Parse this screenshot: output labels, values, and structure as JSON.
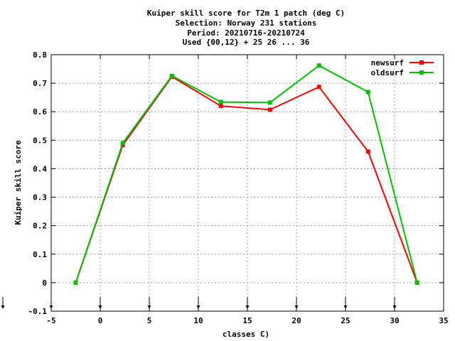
{
  "chart_data": {
    "type": "line",
    "title_lines": [
      "Kuiper skill score  for T2m 1 patch (deg C)",
      "Selection: Norway    231 stations",
      "Period: 20210716-20210724",
      "Used {00,12} + 25 26 ... 36"
    ],
    "xlabel": "classes C)",
    "ylabel": "Kuiper skill score",
    "xlim": [
      -5,
      35
    ],
    "ylim": [
      -0.1,
      0.8
    ],
    "xticks": [
      -5,
      0,
      5,
      10,
      15,
      20,
      25,
      30,
      35
    ],
    "yticks": [
      -0.1,
      0,
      0.1,
      0.2,
      0.3,
      0.4,
      0.5,
      0.6,
      0.7,
      0.8
    ],
    "xtick_labels": [
      "-5",
      "0",
      "5",
      "10",
      "15",
      "20",
      "25",
      "30",
      "35"
    ],
    "ytick_labels": [
      "-0.1",
      "0",
      "0.1",
      "0.2",
      "0.3",
      "0.4",
      "0.5",
      "0.6",
      "0.7",
      "0.8"
    ],
    "class_markers_x": [
      -5,
      0,
      5,
      10,
      15,
      20,
      25,
      30
    ],
    "grid": true,
    "legend_position": "top-right",
    "series": [
      {
        "name": "newsurf",
        "color": "#ff0000",
        "x": [
          -2.5,
          2.3,
          7.3,
          12.3,
          17.3,
          22.3,
          27.3,
          32.3
        ],
        "values": [
          0.0,
          0.483,
          0.723,
          0.62,
          0.607,
          0.687,
          0.46,
          0.0
        ]
      },
      {
        "name": "oldsurf",
        "color": "#00c000",
        "x": [
          -2.5,
          2.3,
          7.3,
          12.3,
          17.3,
          22.3,
          27.3,
          32.3
        ],
        "values": [
          0.0,
          0.49,
          0.726,
          0.634,
          0.632,
          0.762,
          0.669,
          0.0
        ]
      }
    ]
  }
}
